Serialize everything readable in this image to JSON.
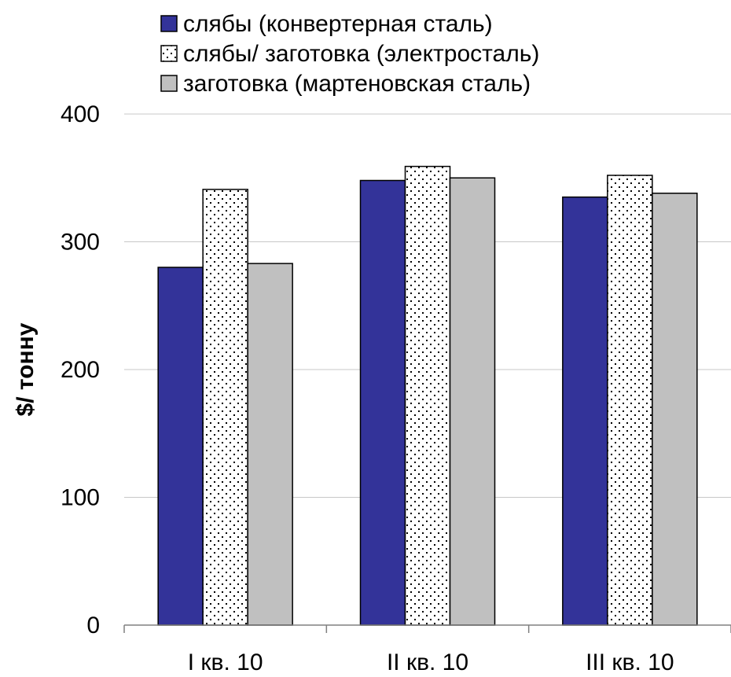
{
  "chart_data": {
    "type": "bar",
    "categories": [
      "I кв. 10",
      "II кв. 10",
      "III кв. 10"
    ],
    "series": [
      {
        "name": "слябы (конвертерная сталь)",
        "values": [
          280,
          348,
          335
        ],
        "color": "#333399",
        "pattern": "solid"
      },
      {
        "name": "слябы/ заготовка (электросталь)",
        "values": [
          341,
          359,
          352
        ],
        "color": "#ffffff",
        "pattern": "dots"
      },
      {
        "name": "заготовка (мартеновская сталь)",
        "values": [
          283,
          350,
          338
        ],
        "color": "#c0c0c0",
        "pattern": "solid"
      }
    ],
    "title": "",
    "xlabel": "",
    "ylabel": "$/ тонну",
    "ylim": [
      0,
      400
    ],
    "yticks": [
      "0",
      "100",
      "200",
      "300",
      "400"
    ],
    "grid": true,
    "legend": "top"
  }
}
